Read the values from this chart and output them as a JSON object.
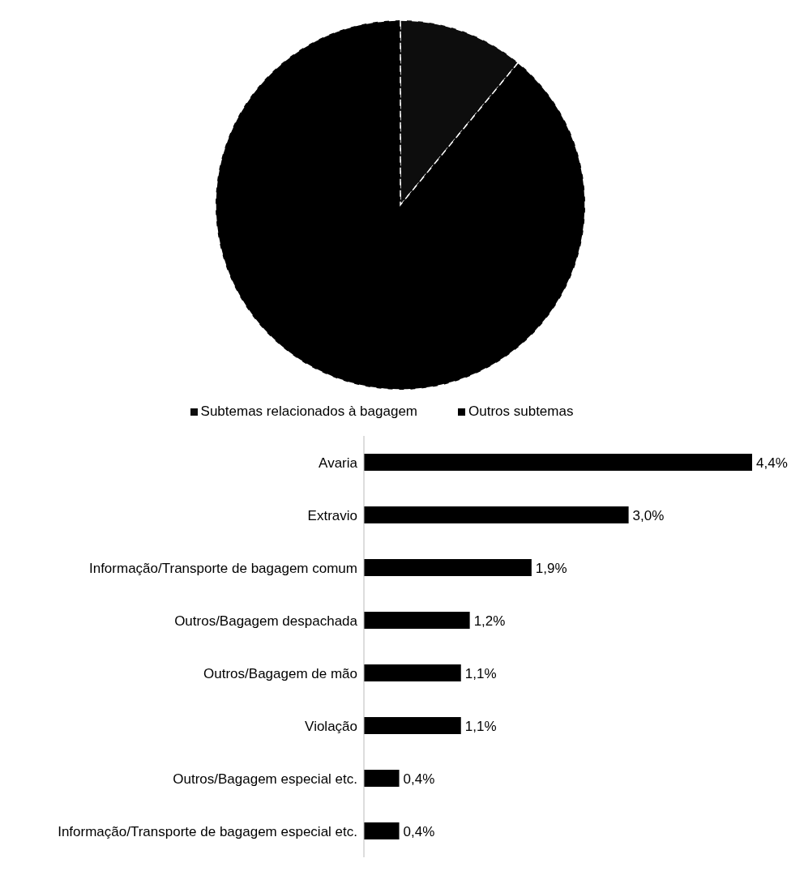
{
  "chart_data": [
    {
      "type": "pie",
      "categories": [
        "Subtemas relacionados à bagagem",
        "Outros subtemas"
      ],
      "values": [
        11,
        89
      ],
      "colors": [
        "#0d0d0d",
        "#000000"
      ],
      "legend": "bottom"
    },
    {
      "type": "bar",
      "orientation": "horizontal",
      "categories": [
        "Avaria",
        "Extravio",
        "Informação/Transporte de bagagem comum",
        "Outros/Bagagem despachada",
        "Outros/Bagagem de mão",
        "Violação",
        "Outros/Bagagem especial etc.",
        "Informação/Transporte de bagagem especial etc."
      ],
      "values": [
        4.4,
        3.0,
        1.9,
        1.2,
        1.1,
        1.1,
        0.4,
        0.4
      ],
      "value_labels": [
        "4,4%",
        "3,0%",
        "1,9%",
        "1,2%",
        "1,1%",
        "1,1%",
        "0,4%",
        "0,4%"
      ],
      "color": "#000000"
    }
  ]
}
